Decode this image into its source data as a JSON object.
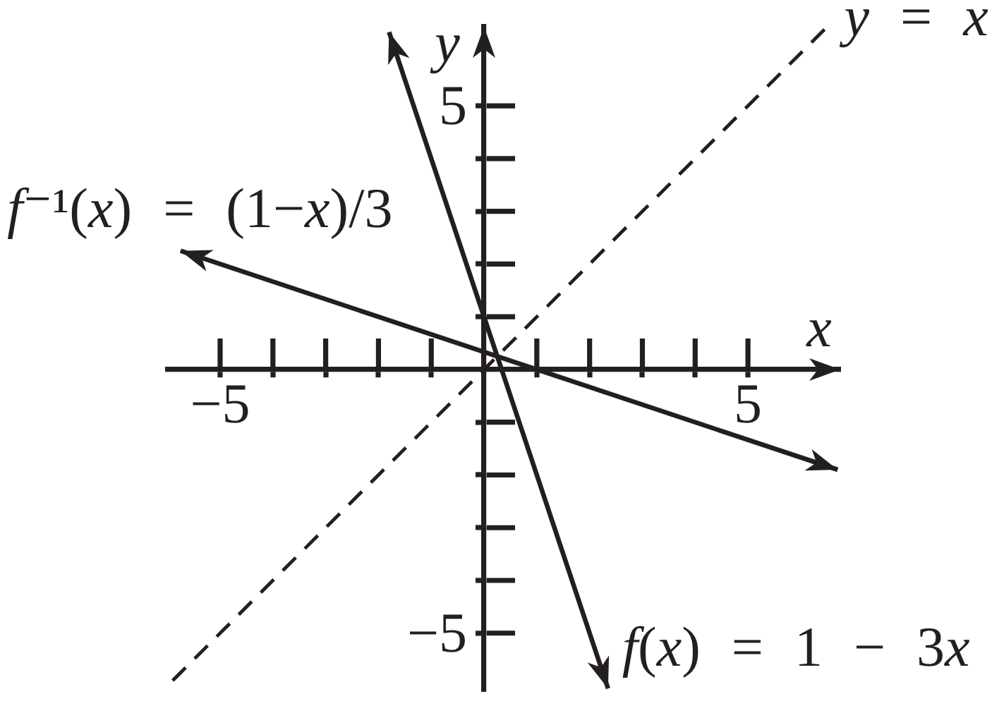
{
  "chart_data": {
    "type": "line",
    "xlabel": "x",
    "ylabel": "y",
    "xlim": [
      -6,
      6.75
    ],
    "ylim": [
      -6.1,
      6.5
    ],
    "xticks": [
      {
        "value": -5,
        "label": "−5"
      },
      {
        "value": -4,
        "label": null
      },
      {
        "value": -3,
        "label": null
      },
      {
        "value": -2,
        "label": null
      },
      {
        "value": -1,
        "label": null
      },
      {
        "value": 1,
        "label": null
      },
      {
        "value": 2,
        "label": null
      },
      {
        "value": 3,
        "label": null
      },
      {
        "value": 4,
        "label": null
      },
      5
    ],
    "yticks": [
      {
        "value": -5,
        "label": "−5"
      },
      {
        "value": -4,
        "label": null
      },
      {
        "value": -3,
        "label": null
      },
      {
        "value": -2,
        "label": null
      },
      {
        "value": -1,
        "label": null
      },
      {
        "value": 1,
        "label": null
      },
      {
        "value": 2,
        "label": null
      },
      {
        "value": 3,
        "label": null
      },
      {
        "value": 4,
        "label": null
      },
      5
    ],
    "series": [
      {
        "name": "y = x",
        "color": "#231f20",
        "line_style": "dashed",
        "x": [
          -5.9,
          6.45
        ],
        "values": [
          -5.9,
          6.45
        ]
      },
      {
        "name": "f(x) = 1 − 3x",
        "color": "#231f20",
        "x": [
          -1.8,
          2.35
        ],
        "values": [
          6.4,
          -6.05
        ]
      },
      {
        "name": "f⁻¹(x) = (1−x)/3",
        "color": "#231f20",
        "x": [
          -5.75,
          6.7
        ],
        "values": [
          2.25,
          -1.9
        ]
      }
    ],
    "legend": false,
    "grid": false,
    "marker": "none",
    "line_style": "solid"
  }
}
